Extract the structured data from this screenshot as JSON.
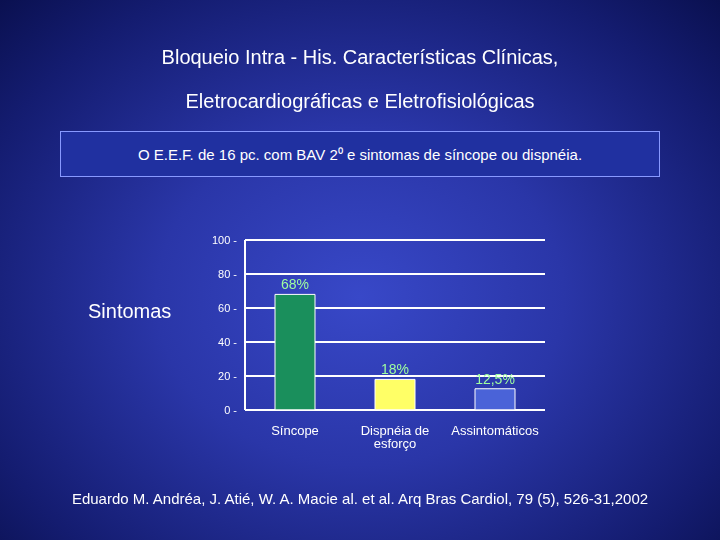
{
  "chart_data": {
    "type": "bar",
    "title": "Bloqueio Intra - His. Características Clínicas,",
    "subtitle": "Eletrocardiográficas e Eletrofisiológicas",
    "annotation": "O E.E.F. de 16 pc. com BAV 2⁰ e sintomas de síncope ou dispnéia.",
    "y_label": "Sintomas",
    "source": "Eduardo M. Andréa, J. Atié, W. A. Macie al. et al. Arq Bras Cardiol, 79 (5), 526-31,2002",
    "categories": [
      "Síncope",
      "Dispnéia de esforço",
      "Assintomáticos"
    ],
    "values": [
      68,
      18,
      12.5
    ],
    "value_labels": [
      "68%",
      "18%",
      "12,5%"
    ],
    "colors": [
      "#1a8f5c",
      "#ffff66",
      "#4a63d8"
    ],
    "ylim": [
      0,
      100
    ],
    "yticks": [
      {
        "value": 0,
        "label": "0 -"
      },
      {
        "value": 20,
        "label": "20 -"
      },
      {
        "value": 40,
        "label": "40 -"
      },
      {
        "value": 60,
        "label": "60 -"
      },
      {
        "value": 80,
        "label": "80 -"
      },
      {
        "value": 100,
        "label": "100 -"
      }
    ],
    "grid": true,
    "data_labels": true
  }
}
